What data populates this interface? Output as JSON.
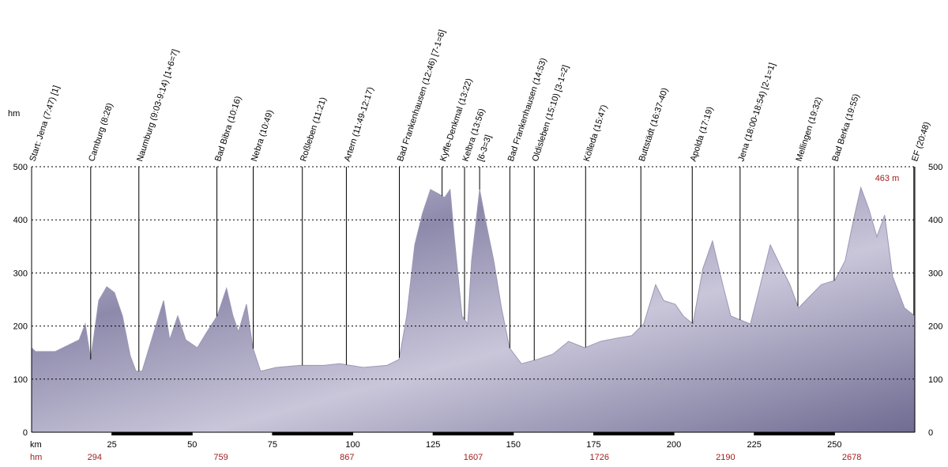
{
  "chart_data": {
    "type": "area",
    "y_label": "hm",
    "x_label": "km",
    "climb_label": "hm",
    "climbs": [
      294,
      759,
      867,
      1607,
      1726,
      2190,
      2678
    ],
    "annotation": "463 m",
    "color": "#9b97b5",
    "grid": true,
    "xlim": [
      0,
      275
    ],
    "ylim": [
      0,
      500
    ],
    "xticks": [
      25,
      50,
      75,
      100,
      125,
      150,
      175,
      200,
      225,
      250
    ],
    "yticks": [
      0,
      100,
      200,
      300,
      400,
      500
    ],
    "x": [
      0,
      1.2,
      7.4,
      14.8,
      16.7,
      18.4,
      20.9,
      23.4,
      25.8,
      28.3,
      30.7,
      32.5,
      34.4,
      38.1,
      41.1,
      43.0,
      45.5,
      48.0,
      51.6,
      54.6,
      57.8,
      60.7,
      62.7,
      64.4,
      66.9,
      68.9,
      71.3,
      76.2,
      83.6,
      91.0,
      95.9,
      103.3,
      110.7,
      114.4,
      116.8,
      119.3,
      121.7,
      124.2,
      126.7,
      128.6,
      130.3,
      131.6,
      134.0,
      135.8,
      137.0,
      139.5,
      141.4,
      143.9,
      146.3,
      148.8,
      152.5,
      157.4,
      162.3,
      167.2,
      172.2,
      177.1,
      182.0,
      186.9,
      190.6,
      194.3,
      196.8,
      200.4,
      202.9,
      205.9,
      209.0,
      212.0,
      215.2,
      217.7,
      220.9,
      223.8,
      226.3,
      230.0,
      233.6,
      236.1,
      238.8,
      242.3,
      245.9,
      250.1,
      253.3,
      255.8,
      258.2,
      260.7,
      263.2,
      265.6,
      268.1,
      271.8,
      275.0
    ],
    "values": [
      159,
      152,
      152,
      174,
      204,
      137,
      248,
      274,
      263,
      219,
      144,
      115,
      115,
      189,
      248,
      174,
      219,
      174,
      159,
      189,
      219,
      271,
      219,
      189,
      241,
      159,
      115,
      122,
      126,
      126,
      129,
      122,
      126,
      137,
      219,
      353,
      412,
      457,
      449,
      442,
      457,
      368,
      219,
      204,
      323,
      457,
      397,
      323,
      234,
      159,
      129,
      137,
      147,
      171,
      159,
      171,
      177,
      182,
      204,
      278,
      248,
      241,
      219,
      204,
      308,
      360,
      278,
      219,
      211,
      204,
      263,
      353,
      308,
      278,
      234,
      256,
      278,
      286,
      323,
      397,
      461,
      420,
      368,
      409,
      293,
      234,
      219
    ],
    "waypoints": [
      {
        "label": "Start: Jena (7:47)  [1]",
        "km": 0
      },
      {
        "label": "Camburg (8:28)",
        "km": 18.4
      },
      {
        "label": "Naumburg (9:03-9:14)  [1+6=7]",
        "km": 33.4
      },
      {
        "label": "Bad Bibra (10:16)",
        "km": 57.7
      },
      {
        "label": "Nebra (10:49)",
        "km": 69
      },
      {
        "label": "Roßleben (11:21)",
        "km": 84.3
      },
      {
        "label": "Artern (11:49-12:17)",
        "km": 98
      },
      {
        "label": "Bad Frankenhausen (12:46)  [7-1=6]",
        "km": 114.5
      },
      {
        "label": "Kyffe-Denkmal (13:22)",
        "km": 127.8
      },
      {
        "label": "Kelbra (13:56)",
        "km": 134.8
      },
      {
        "label": "[6-3=3]",
        "km": 139.5
      },
      {
        "label": "Bad Frankenhausen (14:53)",
        "km": 148.9
      },
      {
        "label": "Oldisleben (15:10)  [3-1=2]",
        "km": 156.5
      },
      {
        "label": "Kölleda (15:47)",
        "km": 172.5
      },
      {
        "label": "Buttstädt (16:37-40)",
        "km": 189.7
      },
      {
        "label": "Apolda (17:19)",
        "km": 205.7
      },
      {
        "label": "Jena (18:00-18:54)  [2-1=1]",
        "km": 220.6
      },
      {
        "label": "Mellingen (19:32)",
        "km": 238.6
      },
      {
        "label": "Bad Berka (19:55)",
        "km": 249.9
      },
      {
        "label": "EF (20:48)",
        "km": 274.7
      }
    ]
  }
}
